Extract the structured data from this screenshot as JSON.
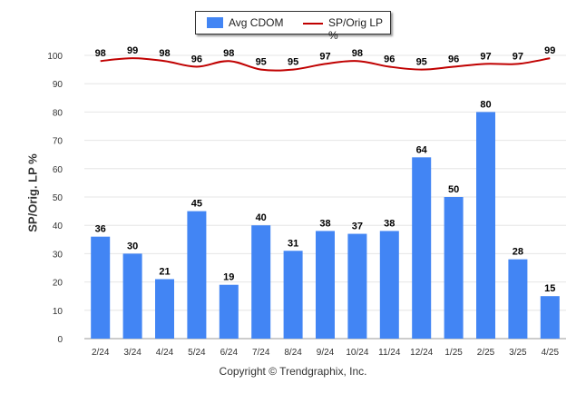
{
  "chart_data": {
    "type": "bar",
    "categories": [
      "2/24",
      "3/24",
      "4/24",
      "5/24",
      "6/24",
      "7/24",
      "8/24",
      "9/24",
      "10/24",
      "11/24",
      "12/24",
      "1/25",
      "2/25",
      "3/25",
      "4/25"
    ],
    "series": [
      {
        "name": "Avg CDOM",
        "type": "bar",
        "color": "#4285f4",
        "values": [
          36,
          30,
          21,
          45,
          19,
          40,
          31,
          38,
          37,
          38,
          64,
          50,
          80,
          28,
          15
        ]
      },
      {
        "name": "SP/Orig LP %",
        "type": "line",
        "color": "#c00000",
        "values": [
          98,
          99,
          98,
          96,
          98,
          95,
          95,
          97,
          98,
          96,
          95,
          96,
          97,
          97,
          99
        ]
      }
    ],
    "ylabel": "SP/Orig. LP %",
    "ylim": [
      0,
      100
    ],
    "yticks": [
      0,
      10,
      20,
      30,
      40,
      50,
      60,
      70,
      80,
      90,
      100
    ],
    "grid": true,
    "legend_position": "top-center"
  },
  "legend": {
    "bar_label": "Avg CDOM",
    "line_label": "SP/Orig LP %"
  },
  "footer": {
    "credit": "Copyright © Trendgraphix, Inc."
  }
}
